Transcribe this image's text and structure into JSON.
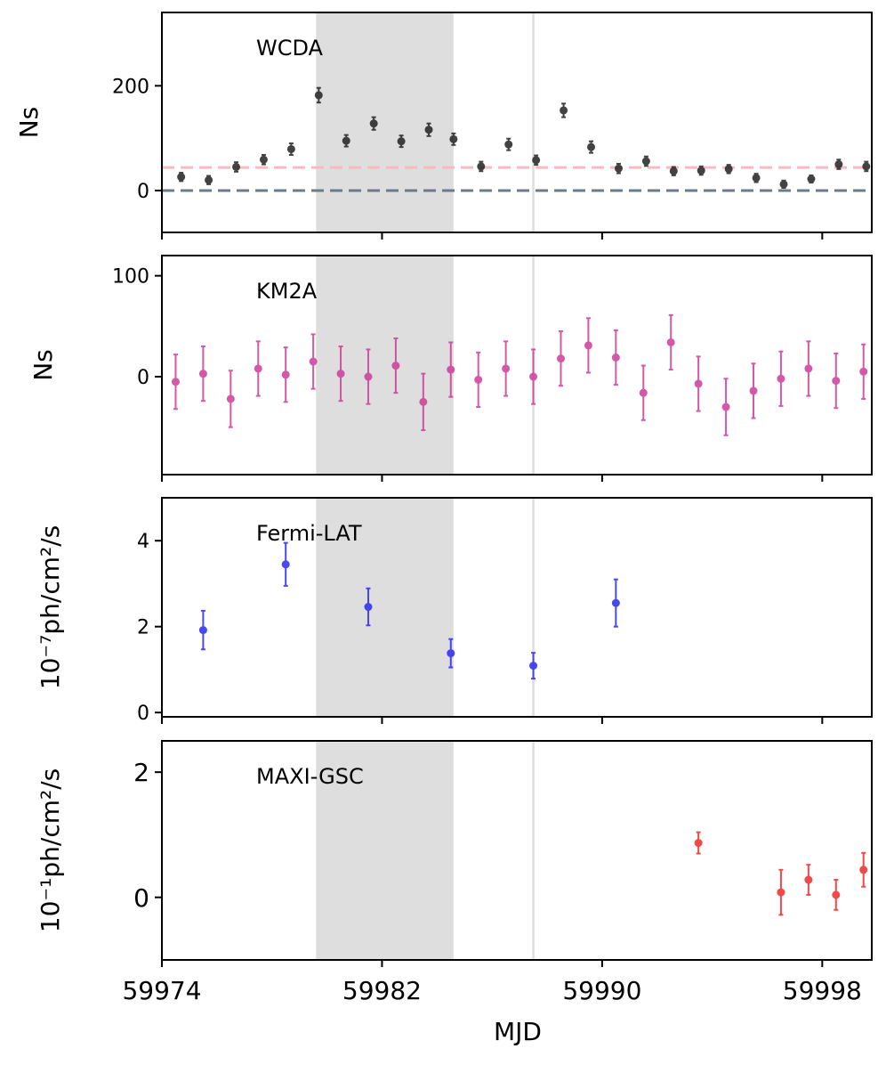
{
  "figure": {
    "xlabel": "MJD"
  },
  "chart_data": [
    {
      "type": "scatter",
      "panel": "top",
      "title": "WCDA",
      "ylabel": "Ns",
      "xlabel": "",
      "xlim": [
        59974,
        59999.8
      ],
      "ylim": [
        -80,
        340
      ],
      "yticks": [
        0,
        200
      ],
      "color": "#222222",
      "shaded_region": [
        59979.6,
        59984.6
      ],
      "vline": 59987.5,
      "hlines": [
        {
          "y": 44,
          "color": "#f7b9c3"
        },
        {
          "y": 0,
          "color": "#6b7b8c"
        }
      ],
      "points": [
        {
          "x": 59974.7,
          "y": 26,
          "err": 8
        },
        {
          "x": 59975.7,
          "y": 20,
          "err": 8
        },
        {
          "x": 59976.7,
          "y": 45,
          "err": 9
        },
        {
          "x": 59977.7,
          "y": 59,
          "err": 9
        },
        {
          "x": 59978.7,
          "y": 79,
          "err": 11
        },
        {
          "x": 59979.7,
          "y": 182,
          "err": 14
        },
        {
          "x": 59980.7,
          "y": 95,
          "err": 11
        },
        {
          "x": 59981.7,
          "y": 128,
          "err": 12
        },
        {
          "x": 59982.7,
          "y": 94,
          "err": 11
        },
        {
          "x": 59983.7,
          "y": 116,
          "err": 12
        },
        {
          "x": 59984.6,
          "y": 98,
          "err": 11
        },
        {
          "x": 59985.6,
          "y": 46,
          "err": 9
        },
        {
          "x": 59986.6,
          "y": 88,
          "err": 11
        },
        {
          "x": 59987.6,
          "y": 58,
          "err": 9
        },
        {
          "x": 59988.6,
          "y": 153,
          "err": 13
        },
        {
          "x": 59989.6,
          "y": 83,
          "err": 11
        },
        {
          "x": 59990.6,
          "y": 42,
          "err": 9
        },
        {
          "x": 59991.6,
          "y": 56,
          "err": 9
        },
        {
          "x": 59992.6,
          "y": 37,
          "err": 8
        },
        {
          "x": 59993.6,
          "y": 38,
          "err": 8
        },
        {
          "x": 59994.6,
          "y": 41,
          "err": 8
        },
        {
          "x": 59995.6,
          "y": 24,
          "err": 8
        },
        {
          "x": 59996.6,
          "y": 12,
          "err": 7
        },
        {
          "x": 59997.6,
          "y": 22,
          "err": 7
        },
        {
          "x": 59998.6,
          "y": 50,
          "err": 9
        },
        {
          "x": 59999.6,
          "y": 46,
          "err": 9
        }
      ]
    },
    {
      "type": "scatter",
      "panel": "second",
      "title": "KM2A",
      "ylabel": "Ns",
      "xlabel": "",
      "xlim": [
        59974,
        59999.8
      ],
      "ylim": [
        -97,
        120
      ],
      "yticks": [
        0,
        100
      ],
      "color": "#cc3d99",
      "shaded_region": [
        59979.6,
        59984.6
      ],
      "vline": 59987.5,
      "points": [
        {
          "x": 59974.5,
          "y": -5,
          "err": 27
        },
        {
          "x": 59975.5,
          "y": 3,
          "err": 27
        },
        {
          "x": 59976.5,
          "y": -22,
          "err": 28
        },
        {
          "x": 59977.5,
          "y": 8,
          "err": 27
        },
        {
          "x": 59978.5,
          "y": 2,
          "err": 27
        },
        {
          "x": 59979.5,
          "y": 15,
          "err": 27
        },
        {
          "x": 59980.5,
          "y": 3,
          "err": 27
        },
        {
          "x": 59981.5,
          "y": 0,
          "err": 27
        },
        {
          "x": 59982.5,
          "y": 11,
          "err": 27
        },
        {
          "x": 59983.5,
          "y": -25,
          "err": 28
        },
        {
          "x": 59984.5,
          "y": 7,
          "err": 27
        },
        {
          "x": 59985.5,
          "y": -3,
          "err": 27
        },
        {
          "x": 59986.5,
          "y": 8,
          "err": 27
        },
        {
          "x": 59987.5,
          "y": 0,
          "err": 27
        },
        {
          "x": 59988.5,
          "y": 18,
          "err": 27
        },
        {
          "x": 59989.5,
          "y": 31,
          "err": 27
        },
        {
          "x": 59990.5,
          "y": 19,
          "err": 27
        },
        {
          "x": 59991.5,
          "y": -16,
          "err": 27
        },
        {
          "x": 59992.5,
          "y": 34,
          "err": 27
        },
        {
          "x": 59993.5,
          "y": -7,
          "err": 27
        },
        {
          "x": 59994.5,
          "y": -30,
          "err": 28
        },
        {
          "x": 59995.5,
          "y": -14,
          "err": 27
        },
        {
          "x": 59996.5,
          "y": -2,
          "err": 27
        },
        {
          "x": 59997.5,
          "y": 8,
          "err": 27
        },
        {
          "x": 59998.5,
          "y": -4,
          "err": 27
        },
        {
          "x": 59999.5,
          "y": 5,
          "err": 27
        }
      ]
    },
    {
      "type": "scatter",
      "panel": "third",
      "title": "Fermi-LAT",
      "ylabel": "10⁻⁷ph/cm²/s",
      "xlabel": "",
      "xlim": [
        59974,
        59999.8
      ],
      "ylim": [
        -0.1,
        5
      ],
      "yticks": [
        0,
        2,
        4
      ],
      "color": "#2a2af0",
      "shaded_region": [
        59979.6,
        59984.6
      ],
      "vline": 59987.5,
      "points": [
        {
          "x": 59975.5,
          "y": 1.92,
          "err": 0.45
        },
        {
          "x": 59978.5,
          "y": 3.45,
          "err": 0.5
        },
        {
          "x": 59981.5,
          "y": 2.46,
          "err": 0.43
        },
        {
          "x": 59984.5,
          "y": 1.38,
          "err": 0.33
        },
        {
          "x": 59987.5,
          "y": 1.09,
          "err": 0.3
        },
        {
          "x": 59990.5,
          "y": 2.55,
          "err": 0.55
        }
      ]
    },
    {
      "type": "scatter",
      "panel": "bottom",
      "title": "MAXI-GSC",
      "ylabel": "10⁻¹ph/cm²/s",
      "xlabel": "MJD",
      "xlim": [
        59974,
        59999.8
      ],
      "ylim": [
        -1,
        2.5
      ],
      "yticks": [
        0,
        2
      ],
      "xticks": [
        59974,
        59982,
        59990,
        59998
      ],
      "color": "#ee2a2a",
      "shaded_region": [
        59979.6,
        59984.6
      ],
      "vline": 59987.5,
      "points": [
        {
          "x": 59993.5,
          "y": 0.87,
          "err": 0.17
        },
        {
          "x": 59996.5,
          "y": 0.08,
          "err": 0.36
        },
        {
          "x": 59997.5,
          "y": 0.28,
          "err": 0.24
        },
        {
          "x": 59998.5,
          "y": 0.04,
          "err": 0.24
        },
        {
          "x": 59999.5,
          "y": 0.44,
          "err": 0.27
        }
      ]
    }
  ]
}
